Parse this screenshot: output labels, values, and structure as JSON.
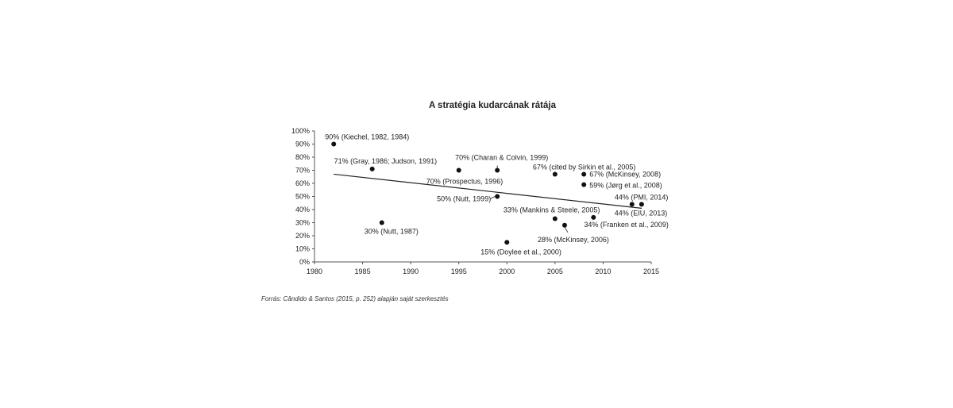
{
  "chart_data": {
    "type": "scatter",
    "title": "A stratégia kudarcának rátája",
    "xlabel": "",
    "ylabel": "",
    "xlim": [
      1980,
      2015
    ],
    "ylim": [
      0,
      100
    ],
    "x_ticks": [
      "1980",
      "1985",
      "1990",
      "1995",
      "2000",
      "2005",
      "2010",
      "2015"
    ],
    "y_ticks": [
      "0%",
      "10%",
      "20%",
      "30%",
      "40%",
      "50%",
      "60%",
      "70%",
      "80%",
      "90%",
      "100%"
    ],
    "grid": false,
    "legend": "none",
    "points": [
      {
        "x": 1982,
        "y": 90,
        "label": "90% (Kiechel, 1982, 1984)"
      },
      {
        "x": 1986,
        "y": 71,
        "label": "71% (Gray, 1986; Judson, 1991)"
      },
      {
        "x": 1987,
        "y": 30,
        "label": "30% (Nutt, 1987)"
      },
      {
        "x": 1995,
        "y": 70,
        "label": "70% (Prospectus, 1996)"
      },
      {
        "x": 1999,
        "y": 70,
        "label": "70% (Charan & Colvin, 1999)"
      },
      {
        "x": 1999,
        "y": 50,
        "label": "50% (Nutt, 1999)"
      },
      {
        "x": 2000,
        "y": 15,
        "label": "15% (Doylee et al., 2000)"
      },
      {
        "x": 2005,
        "y": 67,
        "label": "67% (cited by Sirkin et al., 2005)"
      },
      {
        "x": 2005,
        "y": 33,
        "label": "33% (Mankins & Steele, 2005)"
      },
      {
        "x": 2006,
        "y": 28,
        "label": "28% (McKinsey, 2006)"
      },
      {
        "x": 2008,
        "y": 67,
        "label": "67% (McKinsey, 2008)"
      },
      {
        "x": 2008,
        "y": 59,
        "label": "59% (Jørg et al., 2008)"
      },
      {
        "x": 2009,
        "y": 34,
        "label": "34% (Franken et al., 2009)"
      },
      {
        "x": 2013,
        "y": 44,
        "label": "44% (EIU, 2013)"
      },
      {
        "x": 2014,
        "y": 44,
        "label": "44% (PMI, 2014)"
      }
    ],
    "trendline": {
      "x": [
        1982,
        2014
      ],
      "y": [
        67,
        41
      ]
    }
  },
  "source_note": "Forrás: Cândido & Santos (2015, p. 252) alapján saját szerkesztés"
}
